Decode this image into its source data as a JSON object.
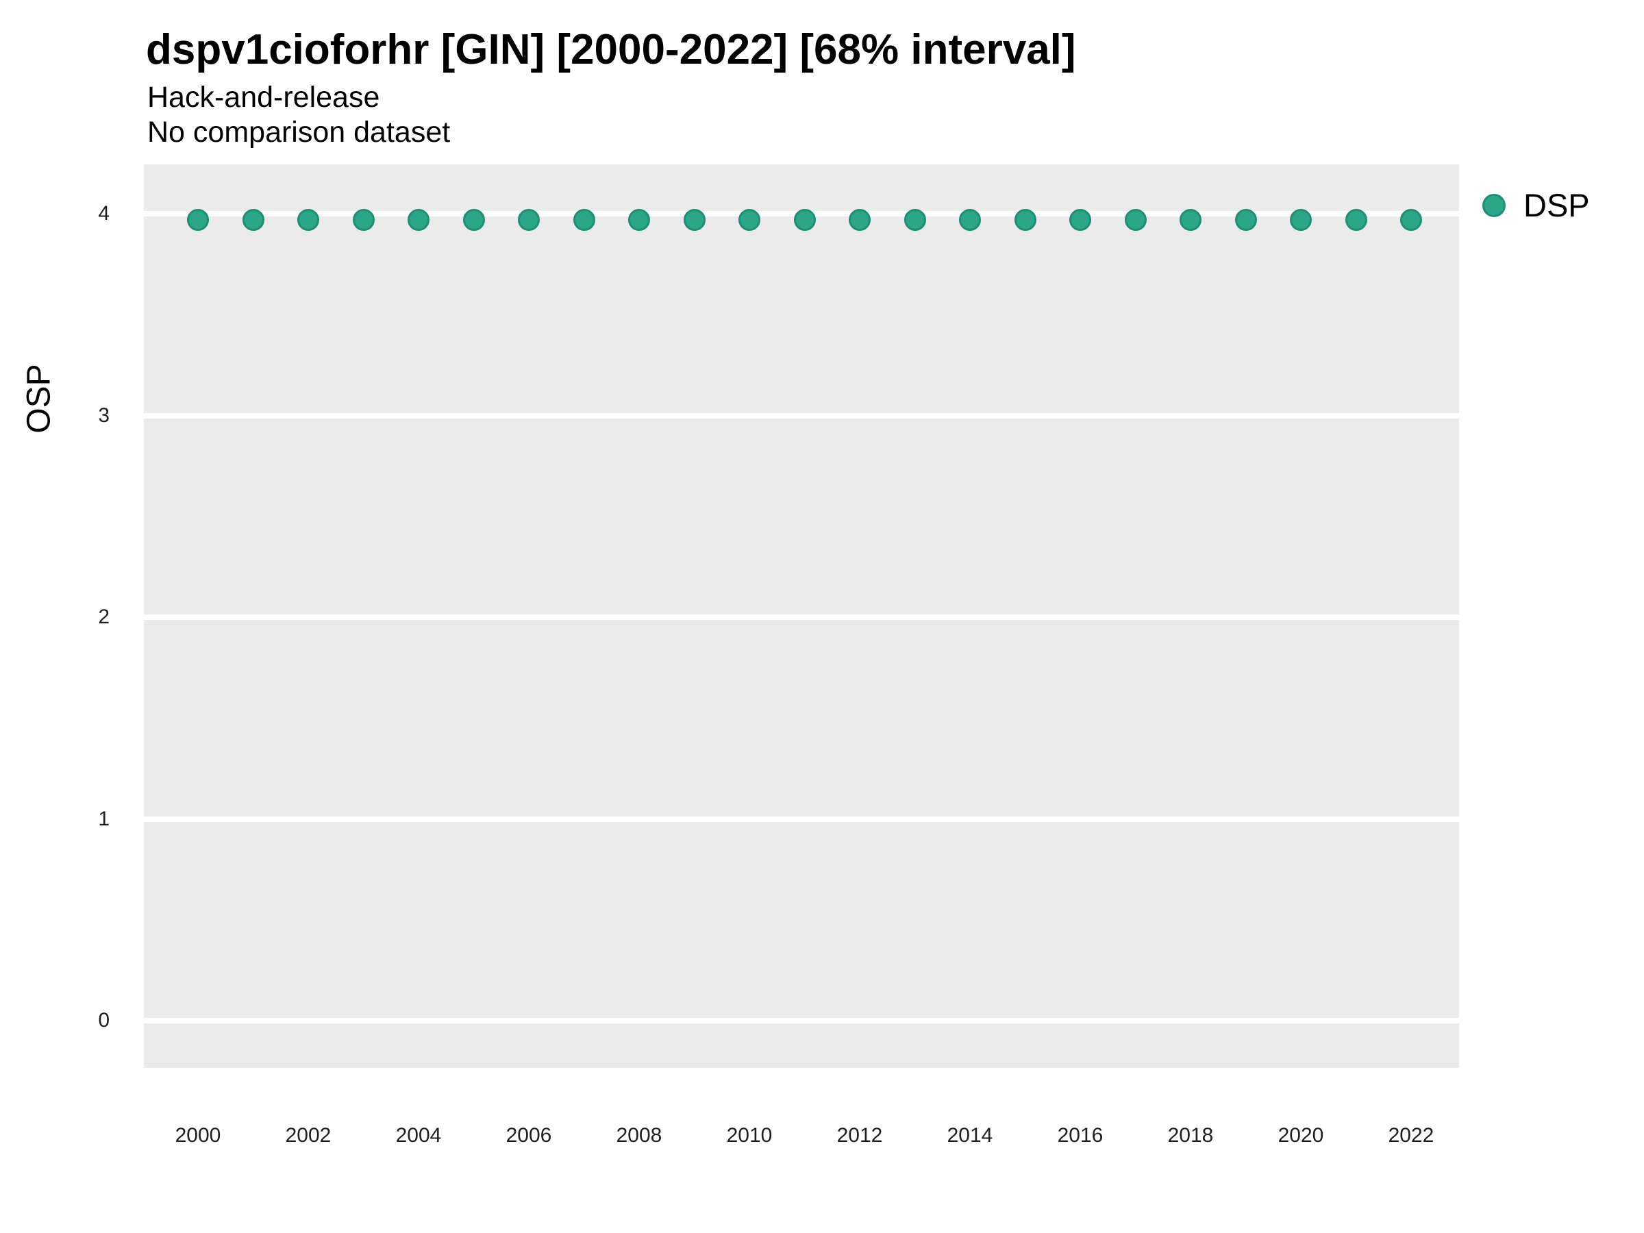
{
  "title": "dspv1cioforhr [GIN] [2000-2022] [68% interval]",
  "subtitle": "Hack-and-release",
  "note": "No comparison dataset",
  "axes": {
    "y_label": "OSP",
    "y_ticks": [
      4,
      3,
      2,
      1,
      0
    ],
    "x_ticks": [
      2000,
      2002,
      2004,
      2006,
      2008,
      2010,
      2012,
      2014,
      2016,
      2018,
      2020,
      2022
    ]
  },
  "legend": {
    "items": [
      {
        "label": "DSP",
        "color": "#2ba689",
        "border_color": "#1e8e74"
      }
    ]
  },
  "colors": {
    "panel_background": "#ebebeb",
    "gridline": "#ffffff",
    "point_fill": "#2ba689",
    "point_border": "#1e8e74",
    "text": "#000000"
  },
  "chart_data": {
    "type": "scatter",
    "title": "dspv1cioforhr [GIN] [2000-2022] [68% interval]",
    "subtitle": "Hack-and-release",
    "annotation": "No comparison dataset",
    "xlabel": "",
    "ylabel": "OSP",
    "xlim": [
      1999,
      2023
    ],
    "ylim": [
      -0.22,
      4.22
    ],
    "y_tick_values": [
      0,
      1,
      2,
      3,
      4
    ],
    "x_tick_values": [
      2000,
      2002,
      2004,
      2006,
      2008,
      2010,
      2012,
      2014,
      2016,
      2018,
      2020,
      2022
    ],
    "grid": "horizontal-major-only",
    "legend_position": "right-top",
    "series": [
      {
        "name": "DSP",
        "x": [
          2000,
          2001,
          2002,
          2003,
          2004,
          2005,
          2006,
          2007,
          2008,
          2009,
          2010,
          2011,
          2012,
          2013,
          2014,
          2015,
          2016,
          2017,
          2018,
          2019,
          2020,
          2021,
          2022
        ],
        "y": [
          3.97,
          3.97,
          3.97,
          3.97,
          3.97,
          3.97,
          3.97,
          3.97,
          3.97,
          3.97,
          3.97,
          3.97,
          3.97,
          3.97,
          3.97,
          3.97,
          3.97,
          3.97,
          3.97,
          3.97,
          3.97,
          3.97,
          3.97
        ]
      }
    ]
  }
}
